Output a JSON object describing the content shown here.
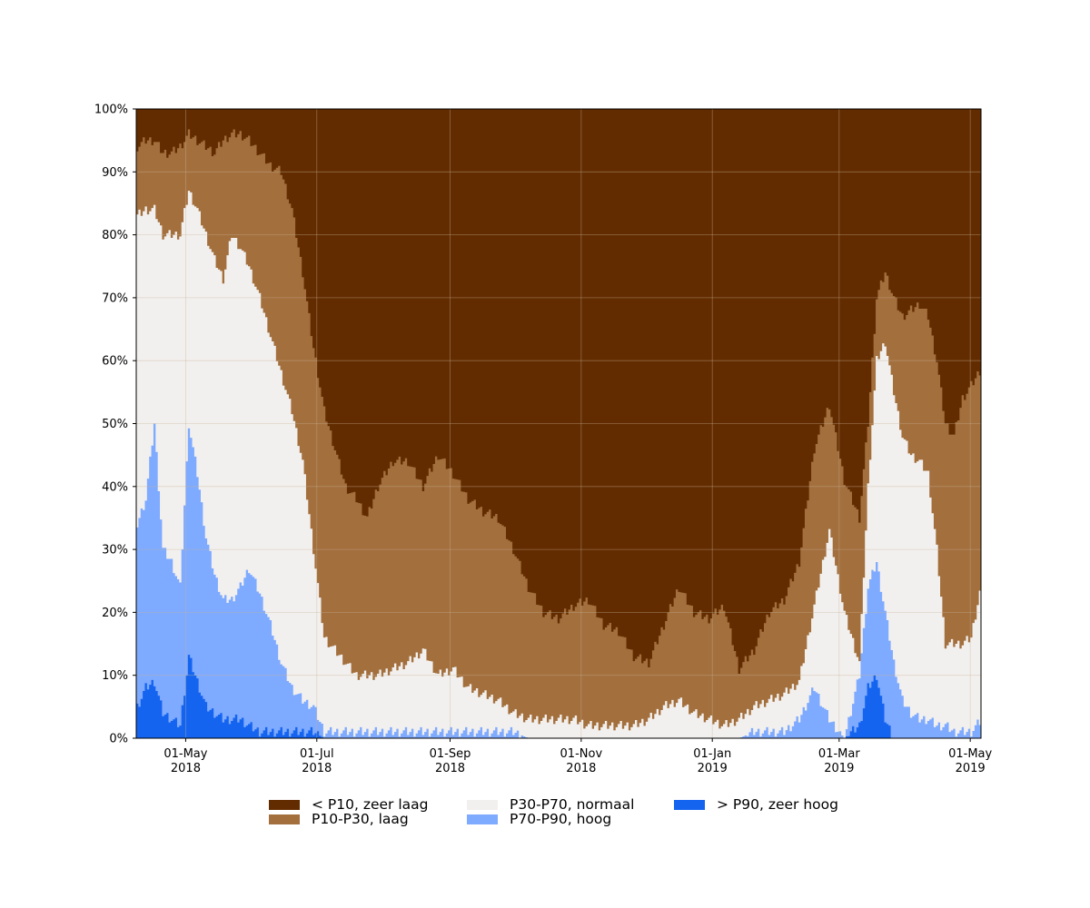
{
  "chart_data": {
    "type": "area",
    "stacked": true,
    "percent_stacked": true,
    "x_start": "2018-04-08",
    "x_end": "2019-05-06",
    "ylim": [
      0,
      100
    ],
    "y_ticks": [
      0,
      10,
      20,
      30,
      40,
      50,
      60,
      70,
      80,
      90,
      100
    ],
    "y_tick_labels": [
      "0%",
      "10%",
      "20%",
      "30%",
      "40%",
      "50%",
      "60%",
      "70%",
      "80%",
      "90%",
      "100%"
    ],
    "x_ticks": [
      {
        "date": "2018-05-01",
        "label1": "01-May",
        "label2": "2018"
      },
      {
        "date": "2018-07-01",
        "label1": "01-Jul",
        "label2": "2018"
      },
      {
        "date": "2018-09-01",
        "label1": "01-Sep",
        "label2": "2018"
      },
      {
        "date": "2018-11-01",
        "label1": "01-Nov",
        "label2": "2018"
      },
      {
        "date": "2019-01-01",
        "label1": "01-Jan",
        "label2": "2019"
      },
      {
        "date": "2019-03-01",
        "label1": "01-Mar",
        "label2": "2019"
      },
      {
        "date": "2019-05-01",
        "label1": "01-May",
        "label2": "2019"
      }
    ],
    "grid": true,
    "legend_position": "bottom",
    "series": [
      {
        "name": "> P90, zeer hoog",
        "color": "#1464f0"
      },
      {
        "name": "P70-P90, hoog",
        "color": "#7eaaff"
      },
      {
        "name": "P30-P70, normaal",
        "color": "#f2f0ee"
      },
      {
        "name": "P10-P30, laag",
        "color": "#a36f3d"
      },
      {
        "name": "< P10, zeer laag",
        "color": "#632c00"
      }
    ],
    "cumulative_boundaries": {
      "dates": [
        "2018-04-08",
        "2018-04-12",
        "2018-04-16",
        "2018-04-20",
        "2018-04-24",
        "2018-04-28",
        "2018-05-02",
        "2018-05-06",
        "2018-05-10",
        "2018-05-14",
        "2018-05-18",
        "2018-05-22",
        "2018-05-26",
        "2018-05-30",
        "2018-06-04",
        "2018-06-09",
        "2018-06-14",
        "2018-06-19",
        "2018-06-24",
        "2018-06-29",
        "2018-07-04",
        "2018-07-09",
        "2018-07-14",
        "2018-07-19",
        "2018-07-24",
        "2018-07-29",
        "2018-08-05",
        "2018-08-12",
        "2018-08-19",
        "2018-08-26",
        "2018-09-02",
        "2018-09-09",
        "2018-09-16",
        "2018-09-23",
        "2018-09-30",
        "2018-10-07",
        "2018-10-14",
        "2018-10-21",
        "2018-10-28",
        "2018-11-04",
        "2018-11-11",
        "2018-11-18",
        "2018-11-25",
        "2018-12-02",
        "2018-12-09",
        "2018-12-16",
        "2018-12-23",
        "2018-12-30",
        "2019-01-06",
        "2019-01-13",
        "2019-01-20",
        "2019-01-27",
        "2019-02-03",
        "2019-02-10",
        "2019-02-17",
        "2019-02-24",
        "2019-03-03",
        "2019-03-10",
        "2019-03-14",
        "2019-03-18",
        "2019-03-22",
        "2019-03-26",
        "2019-03-30",
        "2019-04-03",
        "2019-04-07",
        "2019-04-11",
        "2019-04-15",
        "2019-04-19",
        "2019-04-23",
        "2019-04-27",
        "2019-05-01",
        "2019-05-06"
      ],
      "zeer_hoog_top": [
        5,
        8,
        9,
        4,
        3,
        2,
        13,
        9,
        5,
        4,
        3,
        3,
        3,
        2,
        1,
        1,
        1,
        1,
        1,
        1,
        0,
        0,
        0,
        0,
        0,
        0,
        0,
        0,
        0,
        0,
        0,
        0,
        0,
        0,
        0,
        0,
        0,
        0,
        0,
        0,
        0,
        0,
        0,
        0,
        0,
        0,
        0,
        0,
        0,
        0,
        0,
        0,
        0,
        0,
        0,
        0,
        0,
        2,
        8,
        10,
        3,
        0,
        0,
        0,
        0,
        0,
        0,
        0,
        0,
        0,
        0,
        0
      ],
      "hoog_top": [
        34,
        38,
        50,
        30,
        28,
        24,
        50,
        42,
        32,
        26,
        22,
        22,
        24,
        27,
        23,
        18,
        12,
        8,
        6,
        5,
        1,
        1,
        1,
        1,
        1,
        1,
        1,
        1,
        1,
        1,
        1,
        1,
        1,
        1,
        1,
        0,
        0,
        0,
        0,
        0,
        0,
        0,
        0,
        0,
        0,
        0,
        0,
        0,
        0,
        0,
        1,
        1,
        1,
        3,
        8,
        3,
        0,
        10,
        24,
        28,
        20,
        12,
        6,
        4,
        3,
        3,
        2,
        2,
        1,
        1,
        1,
        3
      ],
      "normaal_top": [
        83,
        84,
        84,
        80,
        80,
        80,
        87,
        84,
        80,
        76,
        73,
        80,
        78,
        75,
        70,
        64,
        58,
        52,
        44,
        30,
        16,
        14,
        12,
        10,
        10,
        10,
        11,
        12,
        14,
        10,
        11,
        8,
        7,
        6,
        4,
        3,
        3,
        3,
        3,
        2,
        2,
        2,
        2,
        3,
        5,
        6,
        4,
        3,
        2,
        3,
        5,
        6,
        7,
        9,
        21,
        33,
        20,
        12,
        40,
        60,
        63,
        55,
        48,
        45,
        44,
        42,
        30,
        15,
        15,
        15,
        16,
        25
      ],
      "laag_top": [
        94,
        95,
        95,
        93,
        93,
        94,
        96,
        95,
        94,
        93,
        95,
        96,
        96,
        95,
        93,
        91,
        90,
        84,
        74,
        62,
        52,
        46,
        40,
        38,
        35,
        40,
        44,
        44,
        40,
        45,
        42,
        38,
        36,
        35,
        30,
        24,
        20,
        19,
        21,
        22,
        18,
        17,
        13,
        12,
        18,
        24,
        20,
        19,
        21,
        11,
        14,
        20,
        22,
        28,
        46,
        53,
        41,
        35,
        50,
        70,
        74,
        70,
        67,
        68,
        69,
        67,
        60,
        50,
        48,
        54,
        56,
        59
      ]
    }
  }
}
